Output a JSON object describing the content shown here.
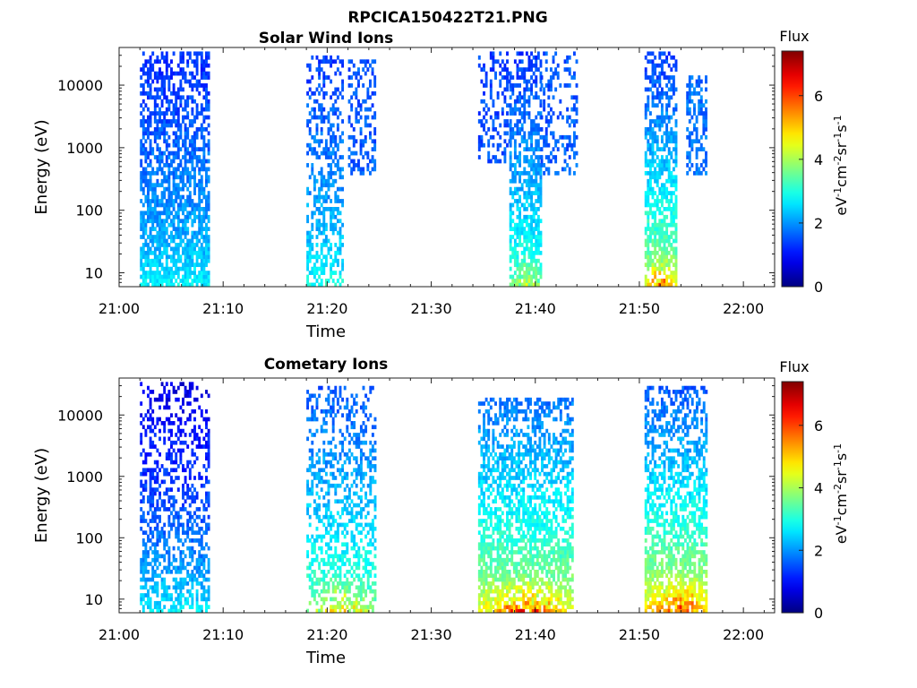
{
  "figure_title": "RPCICA150422T21.PNG",
  "chart_data": [
    {
      "type": "heatmap",
      "title": "Solar Wind Ions",
      "xlabel": "Time",
      "ylabel": "Energy (eV)",
      "x_ticks": [
        "21:00",
        "21:10",
        "21:20",
        "21:30",
        "21:40",
        "21:50",
        "22:00"
      ],
      "x_range_minutes": [
        0,
        63
      ],
      "y_scale": "log",
      "y_ticks": [
        10,
        100,
        1000,
        10000
      ],
      "y_tick_labels": [
        "10",
        "100",
        "1000",
        "10000"
      ],
      "y_range": [
        6,
        40000
      ],
      "colorbar": {
        "title": "Flux",
        "label": "eV-1cm-2sr-1s-1",
        "ticks": [
          0,
          2,
          4,
          6
        ],
        "range": [
          0,
          7.4
        ],
        "colormap": "jet"
      },
      "blocks": [
        {
          "x_start": 2.0,
          "x_end": 8.5,
          "e_low": 6,
          "e_high": 35000,
          "flux_high_e": 1.2,
          "flux_low_e": 2.8,
          "flux_peak": 2.9,
          "density": 0.85
        },
        {
          "x_start": 18.0,
          "x_end": 21.5,
          "e_low": 6,
          "e_high": 30000,
          "flux_high_e": 1.3,
          "flux_low_e": 3.0,
          "flux_peak": 3.2,
          "density": 0.55
        },
        {
          "x_start": 22.0,
          "x_end": 24.5,
          "e_low": 350,
          "e_high": 25000,
          "flux_high_e": 1.5,
          "flux_low_e": 1.8,
          "flux_peak": 1.9,
          "density": 0.55
        },
        {
          "x_start": 34.5,
          "x_end": 37.5,
          "e_low": 600,
          "e_high": 35000,
          "flux_high_e": 1.4,
          "flux_low_e": 1.7,
          "flux_peak": 1.8,
          "density": 0.45
        },
        {
          "x_start": 37.5,
          "x_end": 40.5,
          "e_low": 6,
          "e_high": 35000,
          "flux_high_e": 1.3,
          "flux_low_e": 3.6,
          "flux_peak": 4.8,
          "density": 0.8
        },
        {
          "x_start": 40.5,
          "x_end": 44.0,
          "e_low": 350,
          "e_high": 35000,
          "flux_high_e": 1.5,
          "flux_low_e": 1.9,
          "flux_peak": 2.0,
          "density": 0.5
        },
        {
          "x_start": 50.5,
          "x_end": 53.5,
          "e_low": 6,
          "e_high": 35000,
          "flux_high_e": 1.3,
          "flux_low_e": 4.5,
          "flux_peak": 6.8,
          "density": 0.8
        },
        {
          "x_start": 54.5,
          "x_end": 56.5,
          "e_low": 350,
          "e_high": 15000,
          "flux_high_e": 1.7,
          "flux_low_e": 1.9,
          "flux_peak": 2.0,
          "density": 0.75
        }
      ]
    },
    {
      "type": "heatmap",
      "title": "Cometary Ions",
      "xlabel": "Time",
      "ylabel": "Energy (eV)",
      "x_ticks": [
        "21:00",
        "21:10",
        "21:20",
        "21:30",
        "21:40",
        "21:50",
        "22:00"
      ],
      "x_range_minutes": [
        0,
        63
      ],
      "y_scale": "log",
      "y_ticks": [
        10,
        100,
        1000,
        10000
      ],
      "y_tick_labels": [
        "10",
        "100",
        "1000",
        "10000"
      ],
      "y_range": [
        6,
        40000
      ],
      "colorbar": {
        "title": "Flux",
        "label": "eV-1cm-2sr-1s-1",
        "ticks": [
          0,
          2,
          4,
          6
        ],
        "range": [
          0,
          7.4
        ],
        "colormap": "jet"
      },
      "blocks": [
        {
          "x_start": 2.0,
          "x_end": 8.5,
          "e_low": 6,
          "e_high": 35000,
          "flux_high_e": 0.7,
          "flux_low_e": 2.8,
          "flux_peak": 3.0,
          "density": 0.55
        },
        {
          "x_start": 18.0,
          "x_end": 24.5,
          "e_low": 6,
          "e_high": 30000,
          "flux_high_e": 1.5,
          "flux_low_e": 3.8,
          "flux_peak": 5.6,
          "density": 0.55
        },
        {
          "x_start": 34.5,
          "x_end": 43.5,
          "e_low": 6,
          "e_high": 20000,
          "flux_high_e": 1.6,
          "flux_low_e": 4.6,
          "flux_peak": 7.0,
          "density": 0.75
        },
        {
          "x_start": 50.5,
          "x_end": 56.5,
          "e_low": 6,
          "e_high": 30000,
          "flux_high_e": 1.5,
          "flux_low_e": 5.0,
          "flux_peak": 7.2,
          "density": 0.75
        }
      ]
    }
  ]
}
